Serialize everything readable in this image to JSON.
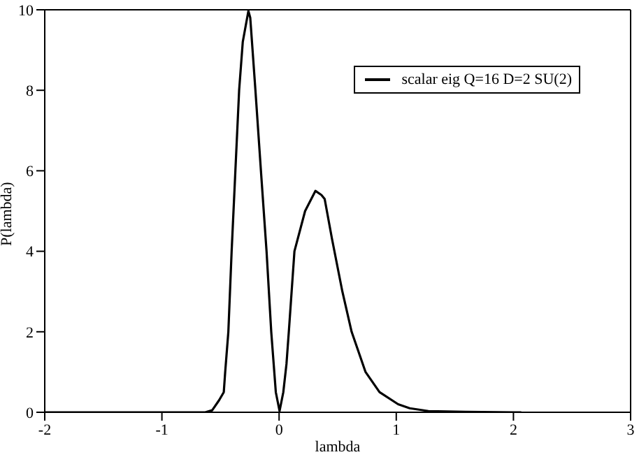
{
  "chart_data": {
    "type": "line",
    "xlabel": "lambda",
    "ylabel": "P(lambda)",
    "xlim": [
      -2,
      3
    ],
    "xticks": [
      -2,
      -1,
      0,
      1,
      2,
      3
    ],
    "ylim": [
      0,
      10
    ],
    "yticks": [
      0,
      2,
      4,
      6,
      8,
      10
    ],
    "legend": "top right",
    "marker": "none",
    "line_style": "solid",
    "series": [
      {
        "name": "scalar eig Q=16 D=2 SU(2)",
        "color": "#000000",
        "x": [
          -2,
          -1.5,
          -1,
          -0.7,
          -0.63,
          -0.571,
          -0.512,
          -0.472,
          -0.46,
          -0.433,
          -0.405,
          -0.373,
          -0.341,
          -0.31,
          -0.262,
          -0.246,
          -0.202,
          -0.155,
          -0.107,
          -0.067,
          -0.028,
          0.004,
          0.036,
          0.063,
          0.083,
          0.131,
          0.222,
          0.31,
          0.361,
          0.389,
          0.452,
          0.54,
          0.619,
          0.738,
          0.857,
          1.016,
          1.115,
          1.274,
          1.59,
          2.008,
          2.067
        ],
        "values": [
          0,
          0,
          0,
          0,
          0,
          0.05,
          0.3,
          0.5,
          1,
          2,
          4,
          6,
          8,
          9.2,
          9.97,
          9.8,
          8,
          6,
          4,
          2,
          0.5,
          0.03,
          0.5,
          1.2,
          2,
          4,
          5,
          5.5,
          5.4,
          5.3,
          4.3,
          3,
          2,
          1,
          0.5,
          0.2,
          0.1,
          0.03,
          0.01,
          0,
          0
        ]
      }
    ]
  }
}
